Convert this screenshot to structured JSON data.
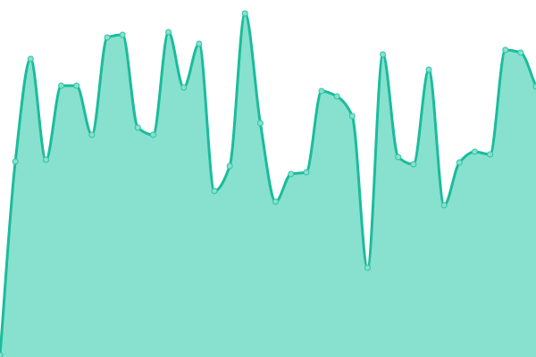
{
  "chart_data": {
    "type": "area",
    "title": "",
    "xlabel": "",
    "ylabel": "",
    "x": [
      0,
      1,
      2,
      3,
      4,
      5,
      6,
      7,
      8,
      9,
      10,
      11,
      12,
      13,
      14,
      15,
      16,
      17,
      18,
      19,
      20,
      21,
      22,
      23,
      24,
      25,
      26,
      27,
      28,
      29,
      30,
      31,
      32,
      33,
      34,
      35
    ],
    "values": [
      2,
      219,
      334,
      221,
      304,
      304,
      249,
      358,
      361,
      257,
      249,
      364,
      302,
      351,
      186,
      214,
      385,
      262,
      174,
      205,
      207,
      298,
      292,
      270,
      100,
      339,
      224,
      216,
      322,
      170,
      218,
      230,
      227,
      344,
      341,
      303
    ],
    "ylim": [
      0,
      400
    ],
    "grid": false,
    "axes_visible": false,
    "legend": "none",
    "colors": {
      "line": "#1abc9c",
      "fill": "#88e0ce",
      "marker_fill": "#88e0ce",
      "marker_stroke": "#2cc5a5"
    }
  }
}
